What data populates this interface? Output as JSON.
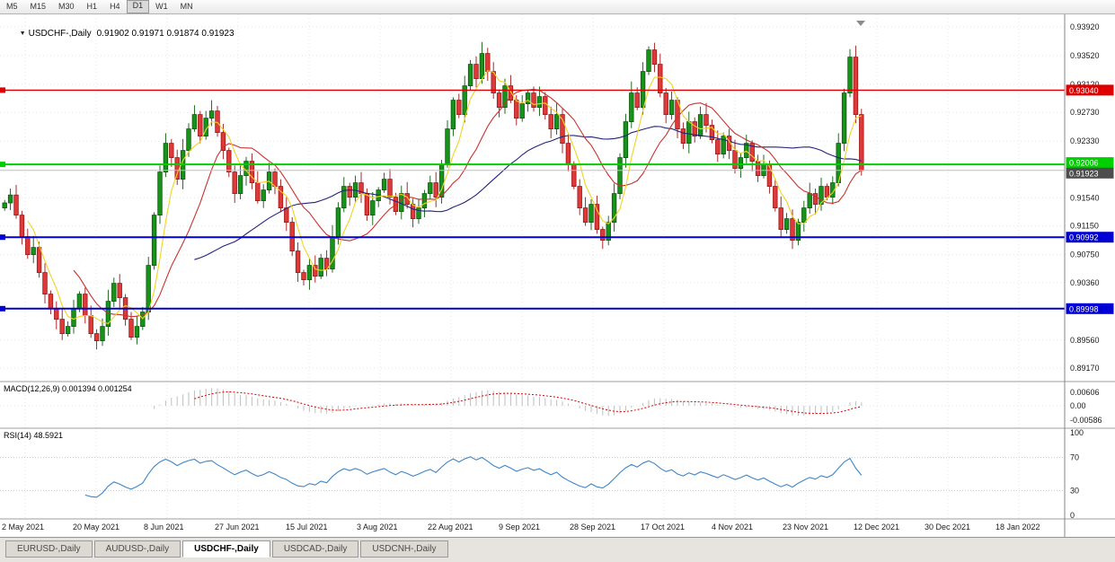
{
  "toolbar": {
    "timeframes": [
      "M5",
      "M15",
      "M30",
      "H1",
      "H4",
      "D1",
      "W1",
      "MN"
    ],
    "active": "D1"
  },
  "chart": {
    "expander_icon": "▼",
    "symbol_title": "USDCHF-,Daily",
    "ohlc": "0.91902 0.91971 0.91874 0.91923"
  },
  "price_axis": {
    "labels": [
      {
        "text": "0.93920",
        "price": 0.9392
      },
      {
        "text": "0.93520",
        "price": 0.9352
      },
      {
        "text": "0.93120",
        "price": 0.9312
      },
      {
        "text": "0.92730",
        "price": 0.9273
      },
      {
        "text": "0.92330",
        "price": 0.9233
      },
      {
        "text": "0.91540",
        "price": 0.9154
      },
      {
        "text": "0.91150",
        "price": 0.9115
      },
      {
        "text": "0.90750",
        "price": 0.9075
      },
      {
        "text": "0.90360",
        "price": 0.9036
      },
      {
        "text": "0.89560",
        "price": 0.8956
      },
      {
        "text": "0.89170",
        "price": 0.8917
      }
    ]
  },
  "hlines": [
    {
      "name": "resistance-red",
      "price": 0.9304,
      "label": "0.93040",
      "color_key": "hline_red",
      "width": 1.4,
      "badge_dy": 0
    },
    {
      "name": "support-green",
      "price": 0.92006,
      "label": "0.92006",
      "color_key": "hline_green",
      "width": 2,
      "badge_dy": -2
    },
    {
      "name": "support-blue-upper",
      "price": 0.90992,
      "label": "0.90992",
      "color_key": "hline_blue",
      "width": 2,
      "badge_dy": 0
    },
    {
      "name": "support-blue-lower",
      "price": 0.89998,
      "label": "0.89998",
      "color_key": "hline_blue",
      "width": 2,
      "badge_dy": 0
    }
  ],
  "current_price": {
    "label": "0.91923",
    "price": 0.91923,
    "badge_dy": 3
  },
  "date_axis": {
    "labels": [
      "2 May 2021",
      "20 May 2021",
      "8 Jun 2021",
      "27 Jun 2021",
      "15 Jul 2021",
      "3 Aug 2021",
      "22 Aug 2021",
      "9 Sep 2021",
      "28 Sep 2021",
      "17 Oct 2021",
      "4 Nov 2021",
      "23 Nov 2021",
      "12 Dec 2021",
      "30 Dec 2021",
      "18 Jan 2022"
    ]
  },
  "indicators": {
    "macd": {
      "title": "MACD(12,26,9) 0.001394 0.001254",
      "axis_labels": [
        "0.00606",
        "0.00",
        "-0.00586"
      ],
      "fast": 12,
      "slow": 26,
      "signal": 9
    },
    "rsi": {
      "title": "RSI(14) 48.5921",
      "levels": [
        100,
        70,
        30,
        0
      ],
      "period": 14
    }
  },
  "tabs": [
    {
      "label": "EURUSD-,Daily",
      "active": false
    },
    {
      "label": "AUDUSD-,Daily",
      "active": false
    },
    {
      "label": "USDCHF-,Daily",
      "active": true
    },
    {
      "label": "USDCAD-,Daily",
      "active": false
    },
    {
      "label": "USDCNH-,Daily",
      "active": false
    }
  ],
  "colors": {
    "candle_up": "#18921B",
    "candle_up_border": "#0A5A0C",
    "candle_down": "#DE3A3A",
    "candle_down_border": "#9E1414",
    "ma_fast": "#EFD423",
    "ma_mid": "#C8322F",
    "ma_slow": "#23237E",
    "macd_hist": "#BEBEBE",
    "macd_signal": "#D40000",
    "rsi_line": "#3E86C8",
    "hline_red": "#DE0000",
    "hline_green": "#00CF00",
    "hline_blue": "#0000D2",
    "price_line": "#C0C0C0",
    "price_badge": "#4D4D4D",
    "grid": "#E6E6E6",
    "sep": "#9E9E9E"
  },
  "chart_data": {
    "type": "candlestick",
    "symbol": "USDCHF",
    "timeframe": "Daily",
    "price_range": [
      0.8905,
      0.94
    ],
    "ma_periods": [
      5,
      13,
      34
    ],
    "closes": [
      0.9147,
      0.9158,
      0.913,
      0.91,
      0.9075,
      0.9085,
      0.905,
      0.902,
      0.9,
      0.8985,
      0.8965,
      0.8975,
      0.9,
      0.902,
      0.899,
      0.8965,
      0.8955,
      0.8975,
      0.901,
      0.9035,
      0.9015,
      0.8985,
      0.896,
      0.8975,
      0.8995,
      0.906,
      0.913,
      0.919,
      0.923,
      0.921,
      0.918,
      0.922,
      0.925,
      0.927,
      0.924,
      0.9265,
      0.9275,
      0.9245,
      0.922,
      0.919,
      0.916,
      0.9185,
      0.9205,
      0.9175,
      0.915,
      0.9165,
      0.919,
      0.917,
      0.914,
      0.912,
      0.908,
      0.905,
      0.904,
      0.906,
      0.9045,
      0.907,
      0.9055,
      0.91,
      0.914,
      0.917,
      0.9155,
      0.9175,
      0.916,
      0.913,
      0.915,
      0.9165,
      0.918,
      0.9155,
      0.9135,
      0.916,
      0.9145,
      0.9125,
      0.914,
      0.916,
      0.9175,
      0.9155,
      0.92,
      0.925,
      0.929,
      0.927,
      0.931,
      0.934,
      0.932,
      0.9355,
      0.933,
      0.93,
      0.928,
      0.931,
      0.929,
      0.9265,
      0.9285,
      0.93,
      0.928,
      0.9295,
      0.927,
      0.925,
      0.927,
      0.923,
      0.92,
      0.917,
      0.914,
      0.912,
      0.9145,
      0.911,
      0.9095,
      0.912,
      0.916,
      0.921,
      0.926,
      0.93,
      0.928,
      0.933,
      0.936,
      0.934,
      0.93,
      0.927,
      0.929,
      0.925,
      0.923,
      0.926,
      0.924,
      0.927,
      0.9255,
      0.9235,
      0.9215,
      0.924,
      0.922,
      0.9195,
      0.921,
      0.923,
      0.9205,
      0.9185,
      0.92,
      0.917,
      0.914,
      0.911,
      0.9125,
      0.9095,
      0.912,
      0.914,
      0.916,
      0.9145,
      0.917,
      0.9155,
      0.9175,
      0.923,
      0.93,
      0.935,
      0.927,
      0.9192
    ]
  }
}
